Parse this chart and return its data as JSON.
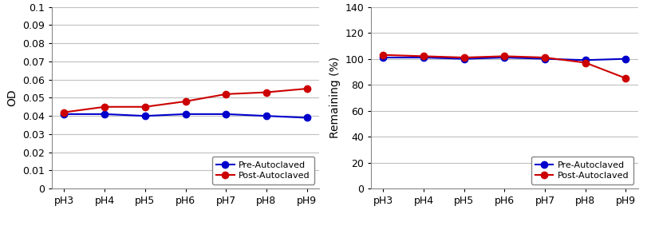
{
  "categories": [
    "pH3",
    "pH4",
    "pH5",
    "pH6",
    "pH7",
    "pH8",
    "pH9"
  ],
  "chart1": {
    "ylabel": "OD",
    "ylim": [
      0,
      0.1
    ],
    "ytick_values": [
      0,
      0.01,
      0.02,
      0.03,
      0.04,
      0.05,
      0.06,
      0.07,
      0.08,
      0.09,
      0.1
    ],
    "ytick_labels": [
      "0",
      "0.01",
      "0.02",
      "0.03",
      "0.04",
      "0.05",
      "0.06",
      "0.07",
      "0.08",
      "0.09",
      "0.1"
    ],
    "pre_autoclaved": [
      0.041,
      0.041,
      0.04,
      0.041,
      0.041,
      0.04,
      0.039
    ],
    "post_autoclaved": [
      0.042,
      0.045,
      0.045,
      0.048,
      0.052,
      0.053,
      0.055
    ]
  },
  "chart2": {
    "ylabel": "Remaining (%)",
    "ylim": [
      0,
      140
    ],
    "ytick_values": [
      0,
      20,
      40,
      60,
      80,
      100,
      120,
      140
    ],
    "ytick_labels": [
      "0",
      "20",
      "40",
      "60",
      "80",
      "100",
      "120",
      "140"
    ],
    "pre_autoclaved": [
      101,
      101,
      100,
      101,
      100,
      99,
      100
    ],
    "post_autoclaved": [
      103,
      102,
      101,
      102,
      101,
      97,
      85
    ]
  },
  "legend_labels": [
    "Pre-Autoclaved",
    "Post-Autoclaved"
  ],
  "pre_color": "#0000CC",
  "post_color": "#CC0000",
  "bg_color": "#FFFFFF",
  "grid_color": "#C0C0C0",
  "marker": "o",
  "markersize": 6,
  "linewidth": 1.5,
  "tick_fontsize": 9,
  "label_fontsize": 10,
  "legend_fontsize": 8
}
